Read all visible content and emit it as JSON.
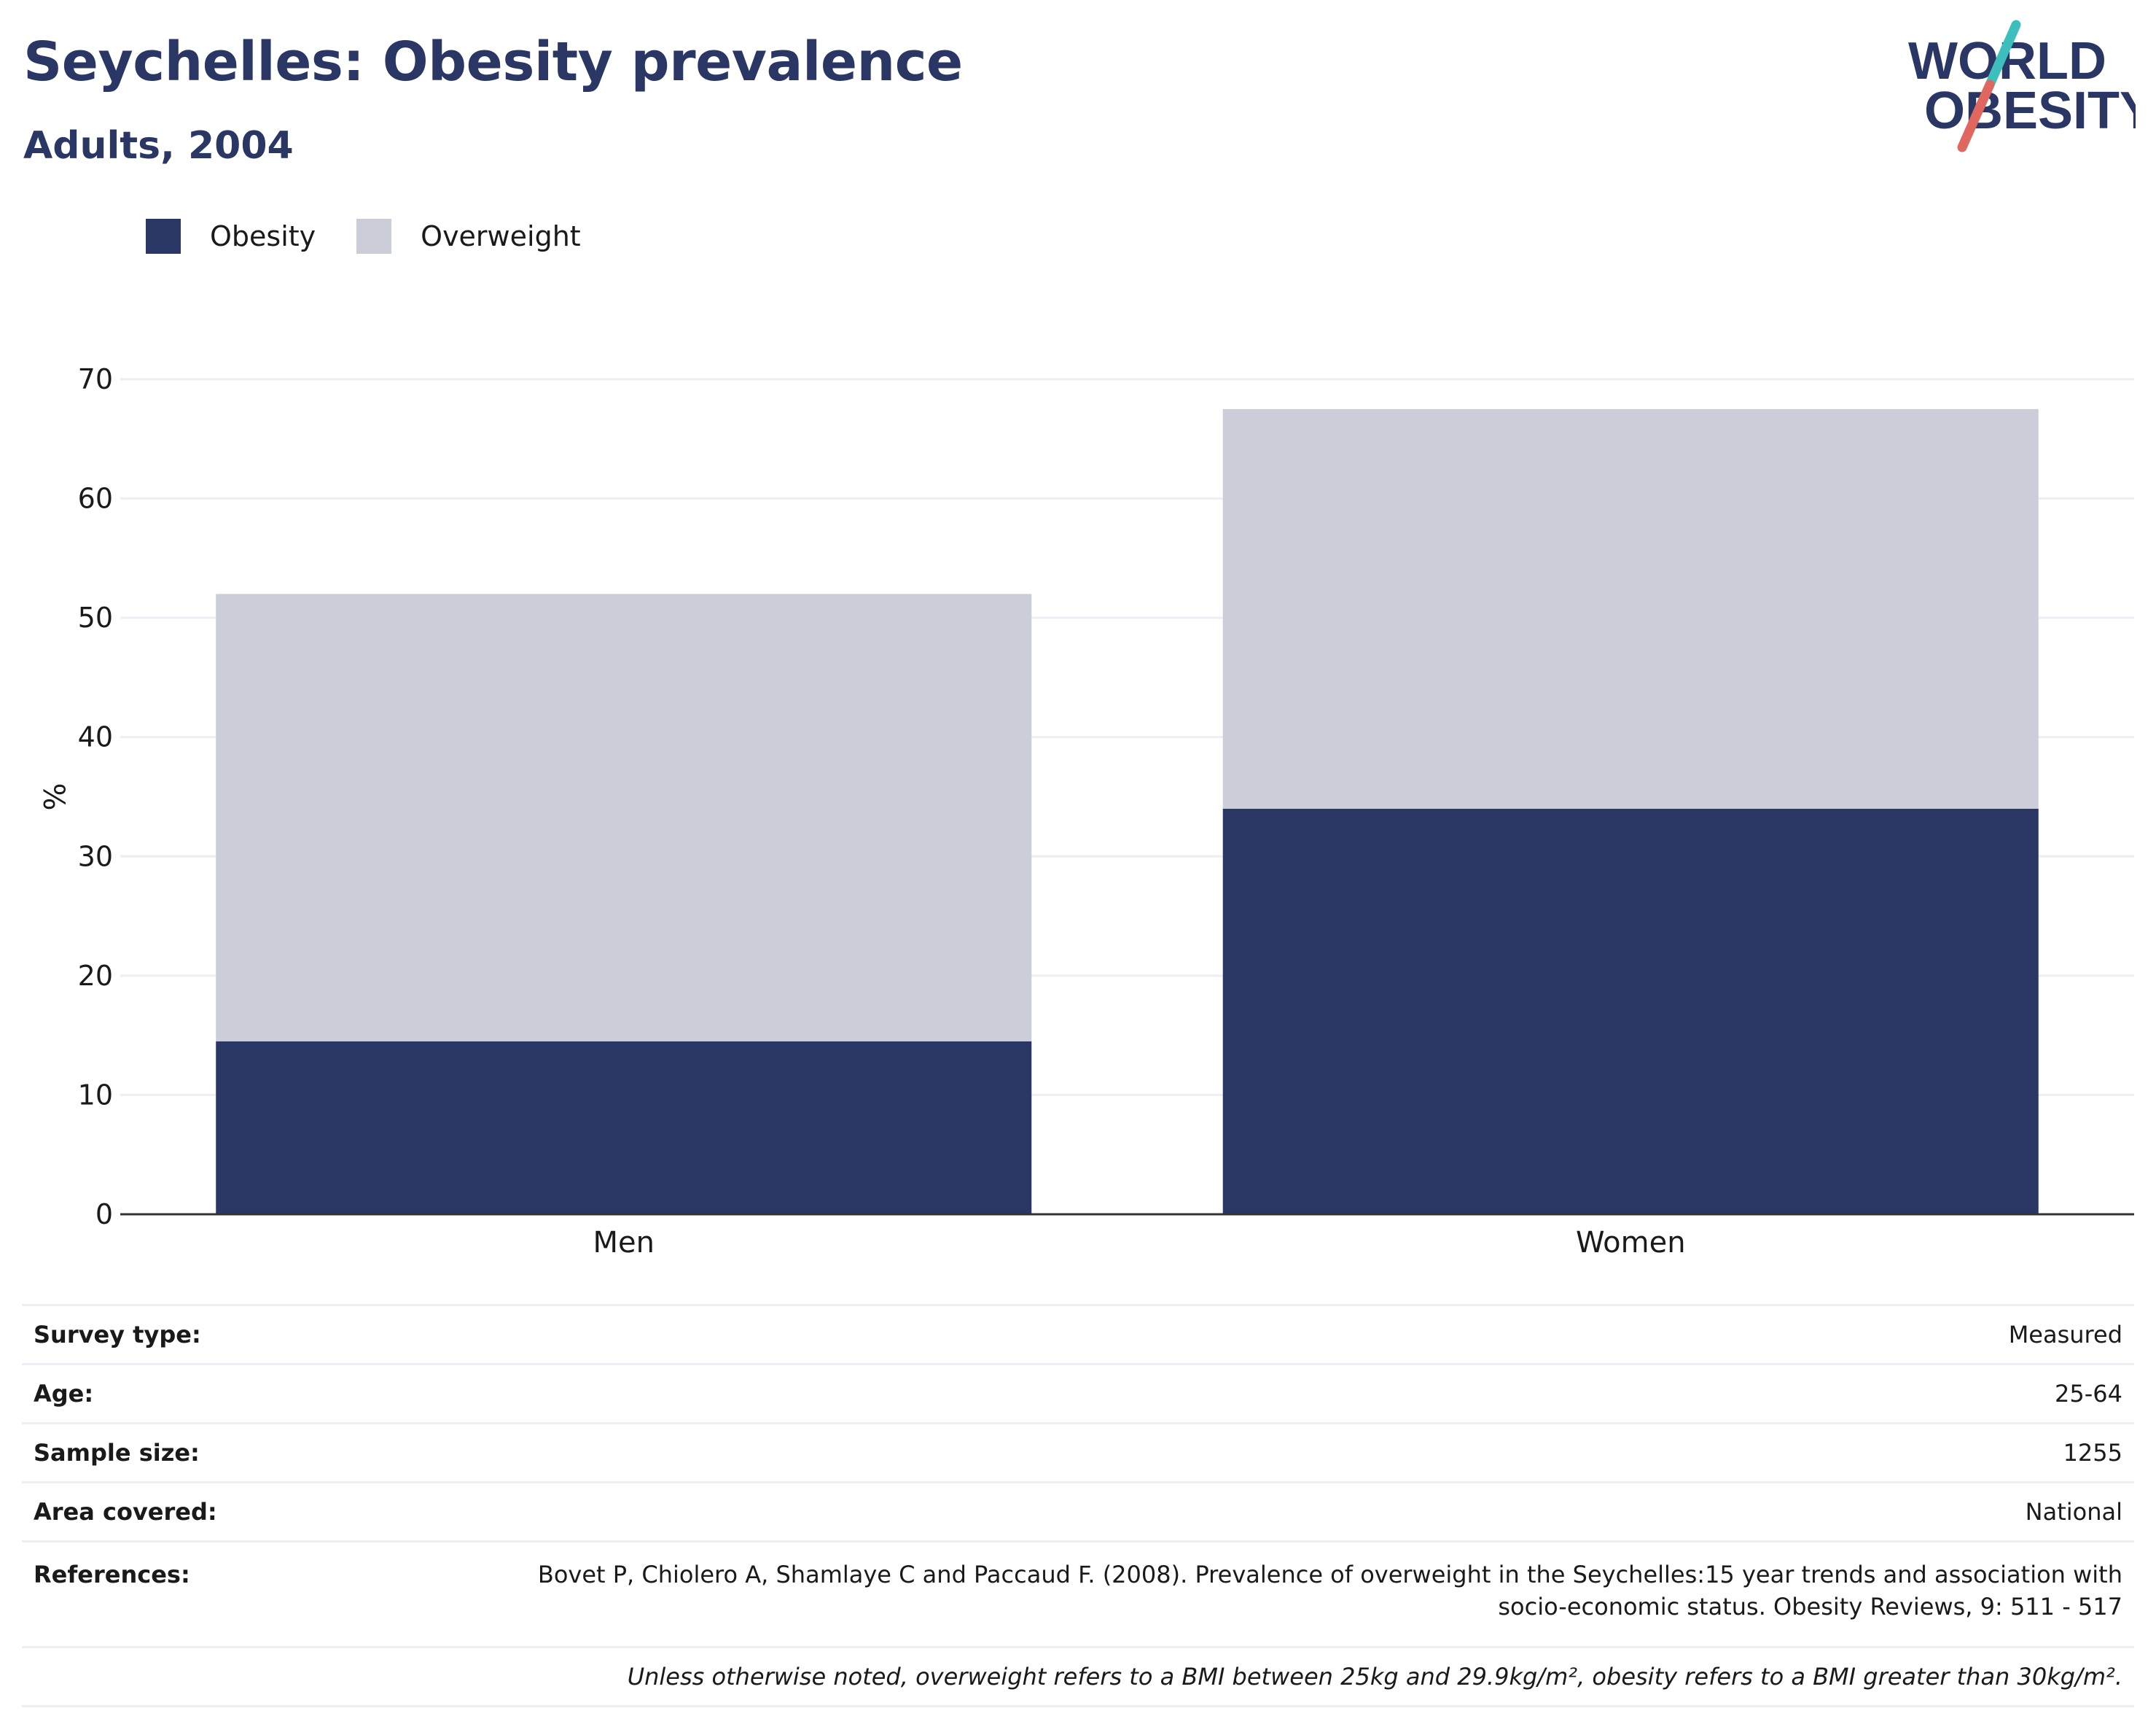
{
  "header": {
    "title": "Seychelles: Obesity prevalence",
    "subtitle": "Adults, 2004"
  },
  "logo": {
    "line1": "WORLD",
    "line2": "OBESITY",
    "accent_teal": "#3dbfbd",
    "accent_red": "#e0675f",
    "text_color": "#2a3663"
  },
  "legend": [
    {
      "label": "Obesity",
      "color": "#2a3663"
    },
    {
      "label": "Overweight",
      "color": "#cbcdd9"
    }
  ],
  "chart_data": {
    "type": "bar",
    "stacked": true,
    "categories": [
      "Men",
      "Women"
    ],
    "series": [
      {
        "name": "Obesity",
        "values": [
          14.5,
          34.0
        ],
        "color": "#2a3663"
      },
      {
        "name": "Overweight",
        "values": [
          37.5,
          33.5
        ],
        "color": "#cbcdd9"
      }
    ],
    "ylabel": "%",
    "ylim": [
      0,
      70
    ],
    "yticks": [
      0,
      10,
      20,
      30,
      40,
      50,
      60,
      70
    ],
    "grid": true,
    "legend_position": "top-left"
  },
  "info": {
    "rows": [
      {
        "key": "Survey type:",
        "value": "Measured"
      },
      {
        "key": "Age:",
        "value": "25-64"
      },
      {
        "key": "Sample size:",
        "value": "1255"
      },
      {
        "key": "Area covered:",
        "value": "National"
      }
    ],
    "references_label": "References:",
    "references_line1": "Bovet P, Chiolero A, Shamlaye C and Paccaud F. (2008). Prevalence of overweight in the Seychelles:15 year trends and association with",
    "references_line2": "socio-economic status. Obesity Reviews, 9: 511 - 517",
    "note": "Unless otherwise noted, overweight refers to a BMI between 25kg and 29.9kg/m², obesity refers to a BMI greater than 30kg/m²."
  }
}
